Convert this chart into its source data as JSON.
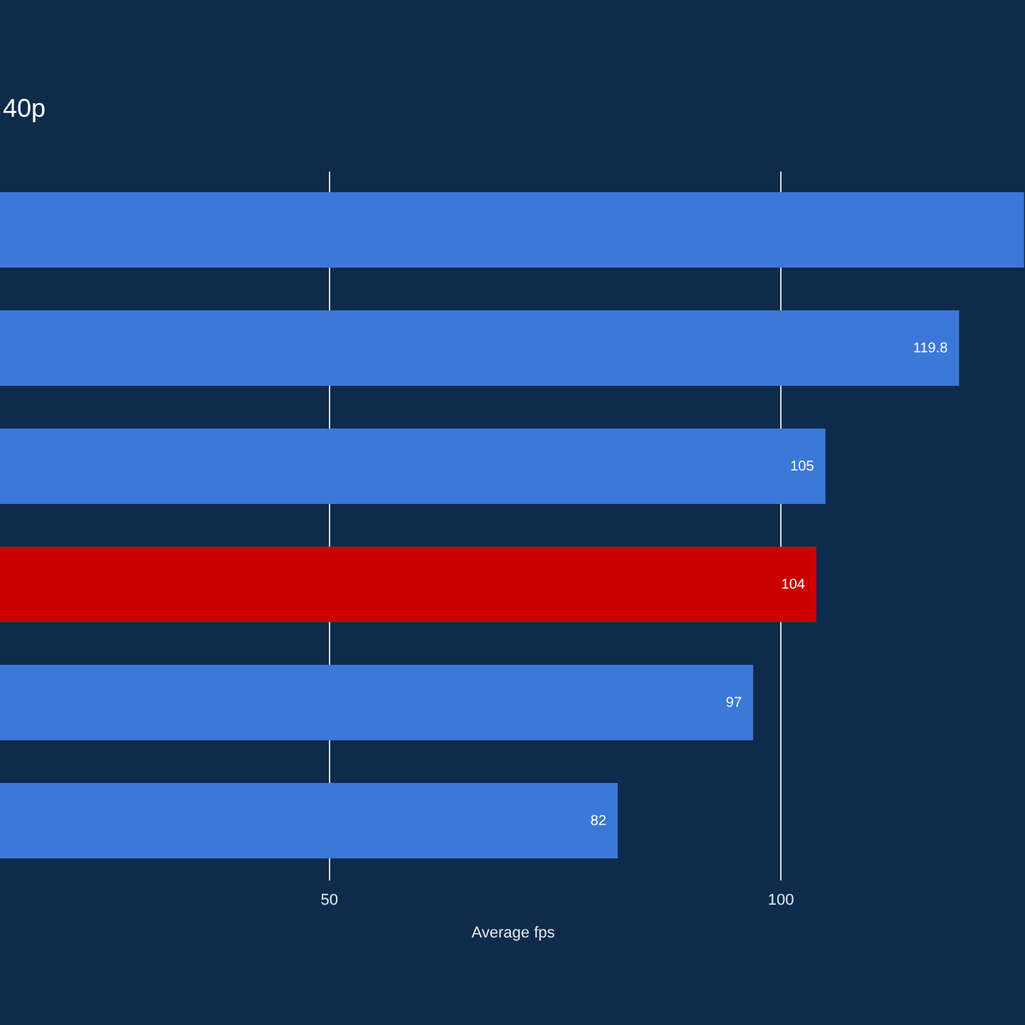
{
  "chart_data": {
    "type": "bar",
    "orientation": "horizontal",
    "title": "40p",
    "xlabel": "Average fps",
    "categories": [
      null,
      null,
      null,
      null,
      null,
      null
    ],
    "values": [
      127,
      119.8,
      105,
      104,
      97,
      82
    ],
    "colors": [
      "#3b78d8",
      "#3b78d8",
      "#3b78d8",
      "#cc0000",
      "#3b78d8",
      "#3b78d8"
    ],
    "value_labels": [
      null,
      "119.8",
      "105",
      "104",
      "97",
      "82"
    ],
    "xlim": [
      13.6,
      127.1
    ],
    "xticks": [
      50,
      100
    ],
    "grid": "x"
  }
}
